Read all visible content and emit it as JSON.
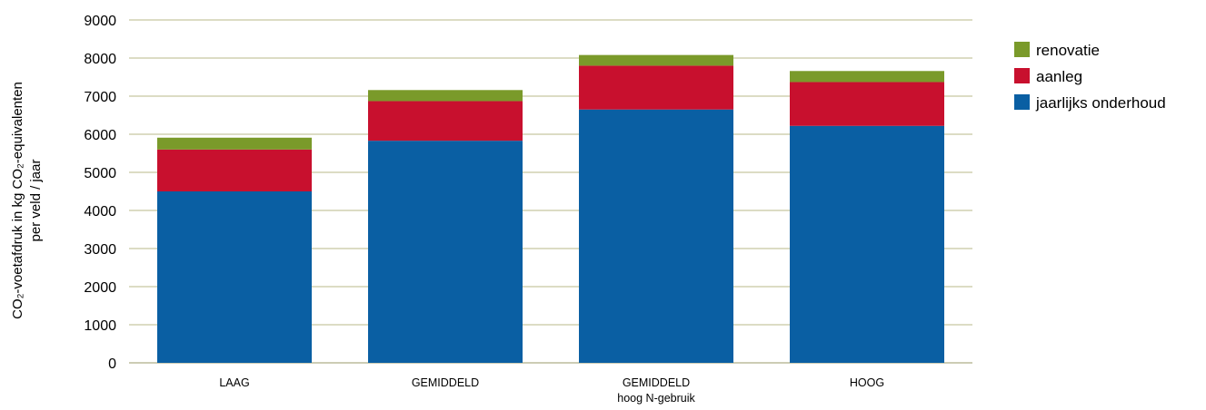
{
  "chart_data": {
    "type": "bar",
    "stacked": true,
    "title": "",
    "ylabel": [
      "CO₂-voetafdruk in kg CO₂-equivalenten",
      "per veld / jaar"
    ],
    "xlabel": "",
    "ylim": [
      0,
      9000
    ],
    "yticks": [
      0,
      1000,
      2000,
      3000,
      4000,
      5000,
      6000,
      7000,
      8000,
      9000
    ],
    "grid": true,
    "legend_position": "right",
    "categories": [
      [
        "LAAG"
      ],
      [
        "GEMIDDELD"
      ],
      [
        "GEMIDDELD",
        "hoog N-gebruik"
      ],
      [
        "HOOG"
      ]
    ],
    "series": [
      {
        "name": "jaarlijks onderhoud",
        "color": "#0a5fa3",
        "values": [
          4500,
          5830,
          6650,
          6220
        ]
      },
      {
        "name": "aanleg",
        "color": "#c8102e",
        "values": [
          1100,
          1040,
          1150,
          1150
        ]
      },
      {
        "name": "renovatie",
        "color": "#7a9a2a",
        "values": [
          310,
          290,
          280,
          290
        ]
      }
    ],
    "legend_order": [
      "renovatie",
      "aanleg",
      "jaarlijks onderhoud"
    ]
  }
}
